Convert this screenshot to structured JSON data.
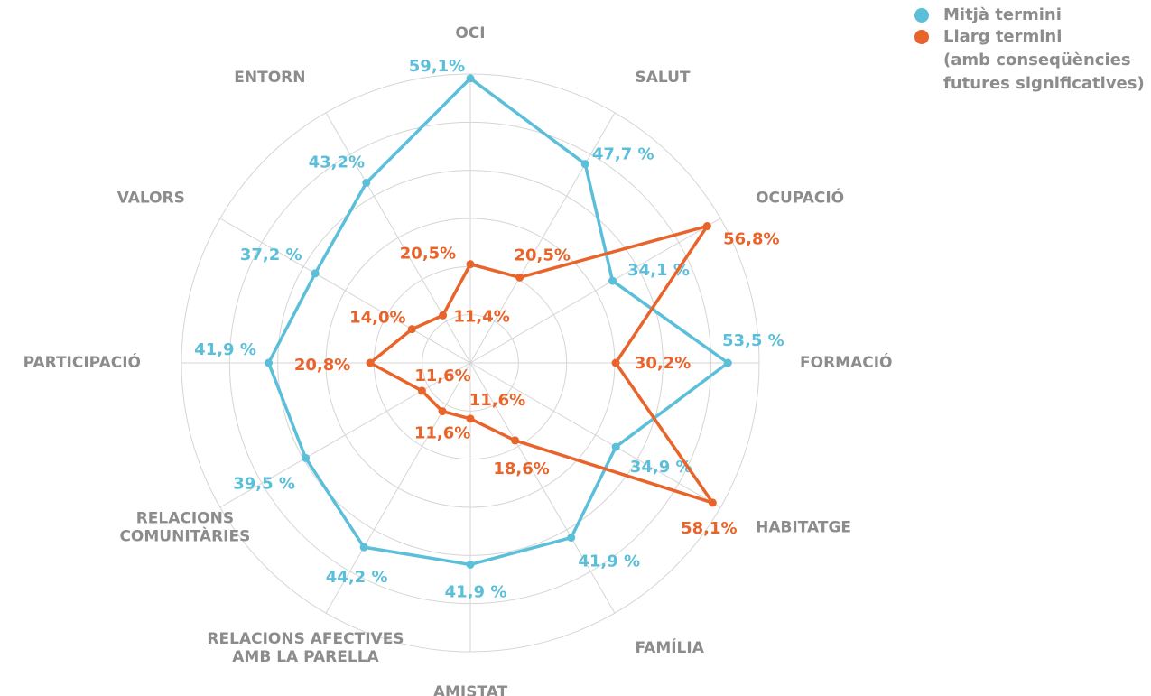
{
  "chart_data": {
    "type": "radar",
    "categories": [
      "OCI",
      "SALUT",
      "OCUPACIÓ",
      "FORMACIÓ",
      "HABITATGE",
      "FAMÍLIA",
      "AMISTAT",
      [
        "RELACIONS AFECTIVES",
        "AMB LA PARELLA"
      ],
      [
        "RELACIONS",
        "COMUNITÀRIES"
      ],
      "PARTICIPACIÓ",
      "VALORS",
      "ENTORN"
    ],
    "series": [
      {
        "name": [
          "Mitjà termini"
        ],
        "color": "#5bbfd9",
        "values": [
          59.1,
          47.7,
          34.1,
          53.5,
          34.9,
          41.9,
          41.9,
          44.2,
          39.5,
          41.9,
          37.2,
          43.2
        ],
        "value_labels": [
          "59,1%",
          "47,7 %",
          "34,1 %",
          "53,5 %",
          "34,9 %",
          "41,9 %",
          "41,9 %",
          "44,2 %",
          "39,5 %",
          "41,9 %",
          "37,2 %",
          "43,2%"
        ]
      },
      {
        "name": [
          "Llarg termini",
          "(amb conseqüències",
          "futures significatives)"
        ],
        "color": "#e8642a",
        "values": [
          20.5,
          20.5,
          56.8,
          30.2,
          58.1,
          18.6,
          11.6,
          11.6,
          11.6,
          20.8,
          14.0,
          11.4
        ],
        "value_labels": [
          "20,5%",
          "20,5%",
          "56,8%",
          "30,2%",
          "58,1%",
          "18,6%",
          "11,6%",
          "11,6%",
          "11,6%",
          "20,8%",
          "14,0%",
          "11,4%"
        ]
      }
    ],
    "rlim": [
      0,
      60
    ],
    "rticks": [
      10,
      20,
      30,
      40,
      50,
      60
    ],
    "grid": true,
    "legend": "top-right"
  }
}
